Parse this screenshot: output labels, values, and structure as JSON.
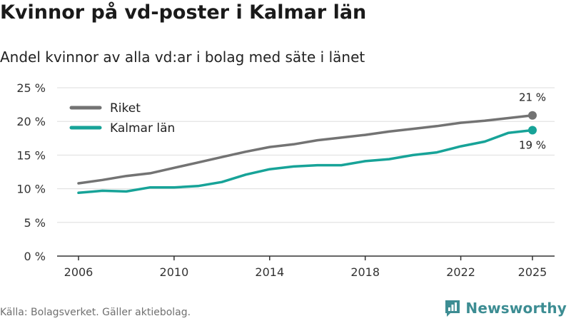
{
  "header": {
    "title": "Kvinnor på vd-poster i Kalmar län",
    "subtitle": "Andel kvinnor av alla vd:ar i bolag med säte i länet"
  },
  "footer": {
    "source": "Källa: Bolagsverket. Gäller aktiebolag.",
    "brand": "Newsworthy"
  },
  "colors": {
    "riket": "#737373",
    "kalmar": "#17a398",
    "grid": "#dddddd",
    "axis": "#333333",
    "brand": "#3d8d93"
  },
  "chart_data": {
    "type": "line",
    "title": "Kvinnor på vd-poster i Kalmar län",
    "subtitle": "Andel kvinnor av alla vd:ar i bolag med säte i länet",
    "xlabel": "",
    "ylabel": "",
    "x": [
      2006,
      2007,
      2008,
      2009,
      2010,
      2011,
      2012,
      2013,
      2014,
      2015,
      2016,
      2017,
      2018,
      2019,
      2020,
      2021,
      2022,
      2023,
      2024,
      2025
    ],
    "xticks": [
      2006,
      2010,
      2014,
      2018,
      2022,
      2025
    ],
    "ylim": [
      0,
      25
    ],
    "yticks": [
      0,
      5,
      10,
      15,
      20,
      25
    ],
    "ytick_labels": [
      "0 %",
      "5 %",
      "10 %",
      "15 %",
      "20 %",
      "25 %"
    ],
    "grid": true,
    "legend_position": "top-left",
    "series": [
      {
        "name": "Riket",
        "color": "#737373",
        "values": [
          10.8,
          11.3,
          11.9,
          12.3,
          13.1,
          13.9,
          14.7,
          15.5,
          16.2,
          16.6,
          17.2,
          17.6,
          18.0,
          18.5,
          18.9,
          19.3,
          19.8,
          20.1,
          20.5,
          20.9
        ],
        "end_label": "21 %"
      },
      {
        "name": "Kalmar län",
        "color": "#17a398",
        "values": [
          9.4,
          9.7,
          9.6,
          10.2,
          10.2,
          10.4,
          11.0,
          12.1,
          12.9,
          13.3,
          13.5,
          13.5,
          14.1,
          14.4,
          15.0,
          15.4,
          16.3,
          17.0,
          18.3,
          18.7
        ],
        "end_label": "19 %"
      }
    ]
  }
}
